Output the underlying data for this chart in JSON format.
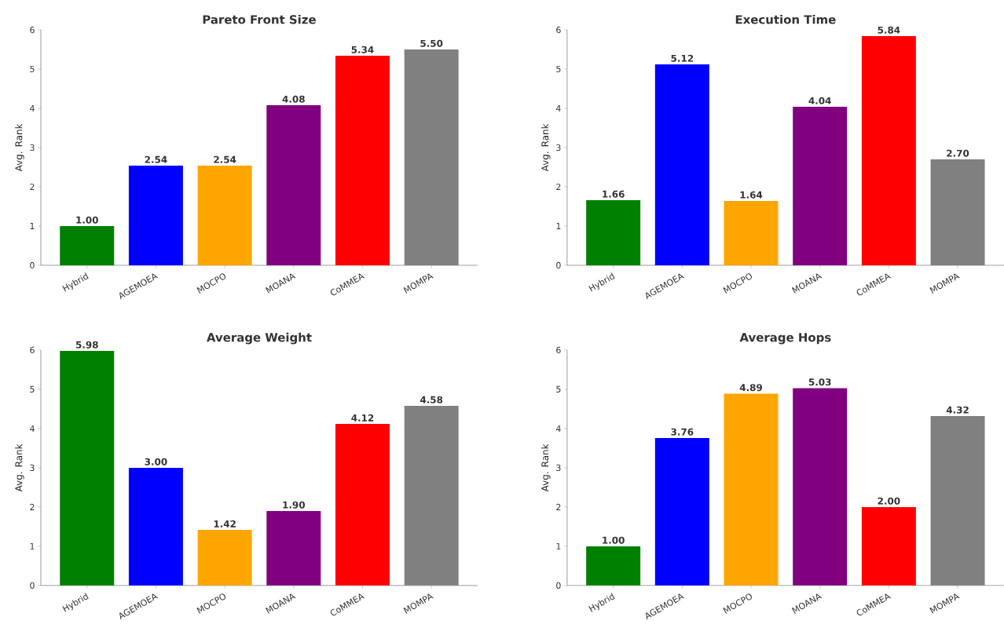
{
  "chart_data": [
    {
      "type": "bar",
      "title": "Pareto Front Size",
      "ylabel": "Avg. Rank",
      "categories": [
        "Hybrid",
        "AGEMOEA",
        "MOCPO",
        "MOANA",
        "CoMMEA",
        "MOMPA"
      ],
      "values": [
        1.0,
        2.54,
        2.54,
        4.08,
        5.34,
        5.5
      ],
      "value_labels": [
        "1.00",
        "2.54",
        "2.54",
        "4.08",
        "5.34",
        "5.50"
      ],
      "colors": [
        "#008000",
        "#0000ff",
        "#ffa500",
        "#800080",
        "#ff0000",
        "#808080"
      ],
      "ylim": [
        0,
        6
      ],
      "yticks": [
        0,
        1,
        2,
        3,
        4,
        5,
        6
      ]
    },
    {
      "type": "bar",
      "title": "Execution Time",
      "ylabel": "Avg. Rank",
      "categories": [
        "Hybrid",
        "AGEMOEA",
        "MOCPO",
        "MOANA",
        "CoMMEA",
        "MOMPA"
      ],
      "values": [
        1.66,
        5.12,
        1.64,
        4.04,
        5.84,
        2.7
      ],
      "value_labels": [
        "1.66",
        "5.12",
        "1.64",
        "4.04",
        "5.84",
        "2.70"
      ],
      "colors": [
        "#008000",
        "#0000ff",
        "#ffa500",
        "#800080",
        "#ff0000",
        "#808080"
      ],
      "ylim": [
        0,
        6
      ],
      "yticks": [
        0,
        1,
        2,
        3,
        4,
        5,
        6
      ]
    },
    {
      "type": "bar",
      "title": "Average Weight",
      "ylabel": "Avg. Rank",
      "categories": [
        "Hybrid",
        "AGEMOEA",
        "MOCPO",
        "MOANA",
        "CoMMEA",
        "MOMPA"
      ],
      "values": [
        5.98,
        3.0,
        1.42,
        1.9,
        4.12,
        4.58
      ],
      "value_labels": [
        "5.98",
        "3.00",
        "1.42",
        "1.90",
        "4.12",
        "4.58"
      ],
      "colors": [
        "#008000",
        "#0000ff",
        "#ffa500",
        "#800080",
        "#ff0000",
        "#808080"
      ],
      "ylim": [
        0,
        6
      ],
      "yticks": [
        0,
        1,
        2,
        3,
        4,
        5,
        6
      ]
    },
    {
      "type": "bar",
      "title": "Average Hops",
      "ylabel": "Avg. Rank",
      "categories": [
        "Hybrid",
        "AGEMOEA",
        "MOCPO",
        "MOANA",
        "CoMMEA",
        "MOMPA"
      ],
      "values": [
        1.0,
        3.76,
        4.89,
        5.03,
        2.0,
        4.32
      ],
      "value_labels": [
        "1.00",
        "3.76",
        "4.89",
        "5.03",
        "2.00",
        "4.32"
      ],
      "colors": [
        "#008000",
        "#0000ff",
        "#ffa500",
        "#800080",
        "#ff0000",
        "#808080"
      ],
      "ylim": [
        0,
        6
      ],
      "yticks": [
        0,
        1,
        2,
        3,
        4,
        5,
        6
      ]
    }
  ]
}
